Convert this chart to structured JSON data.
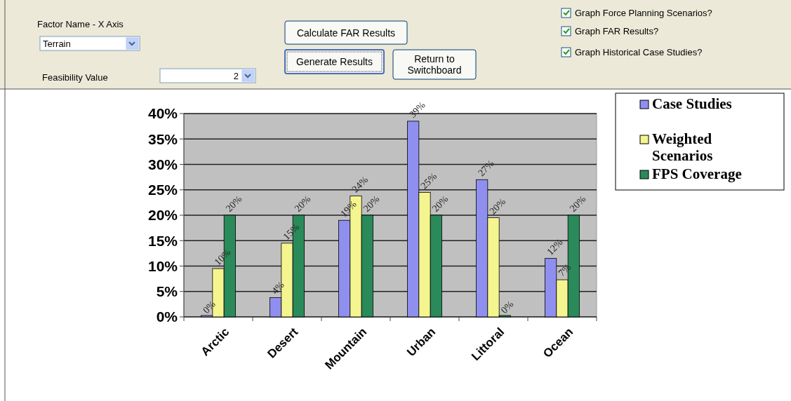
{
  "chart_data": {
    "type": "bar",
    "categories": [
      "Arctic",
      "Desert",
      "Mountain",
      "Urban",
      "Littoral",
      "Ocean"
    ],
    "series": [
      {
        "name": "Case Studies",
        "color": "#8f8ff0",
        "values": [
          0,
          3.8,
          19,
          38.5,
          27,
          11.5
        ],
        "value_labels": [
          "0%",
          "4%",
          "19%",
          "39%",
          "27%",
          "12%"
        ]
      },
      {
        "name": "Weighted Scenarios",
        "color": "#f5f590",
        "values": [
          9.5,
          14.5,
          23.8,
          24.5,
          19.5,
          7.3
        ],
        "value_labels": [
          "10%",
          "15%",
          "24%",
          "25%",
          "20%",
          "7%"
        ]
      },
      {
        "name": "FPS Coverage",
        "color": "#2a8a5a",
        "values": [
          20,
          20,
          20,
          20,
          0,
          20
        ],
        "value_labels": [
          "20%",
          "20%",
          "20%",
          "20%",
          "0%",
          "20%"
        ]
      }
    ],
    "ylim": [
      0,
      40
    ],
    "yticks": [
      {
        "value": 0,
        "label": "0%"
      },
      {
        "value": 5,
        "label": "5%"
      },
      {
        "value": 10,
        "label": "10%"
      },
      {
        "value": 15,
        "label": "15%"
      },
      {
        "value": 20,
        "label": "20%"
      },
      {
        "value": 25,
        "label": "25%"
      },
      {
        "value": 30,
        "label": "30%"
      },
      {
        "value": 35,
        "label": "35%"
      },
      {
        "value": 40,
        "label": "40%"
      }
    ],
    "grid": "y",
    "legend": "right",
    "annotations": [
      "Factor Name - X Axis",
      "Terrain",
      "Feasibility Value",
      "2",
      "Calculate FAR Results",
      "Generate Results",
      "Return to Switchboard",
      "Graph Force Planning Scenarios?",
      "Graph FAR Results?",
      "Graph Historical Case Studies?"
    ]
  }
}
